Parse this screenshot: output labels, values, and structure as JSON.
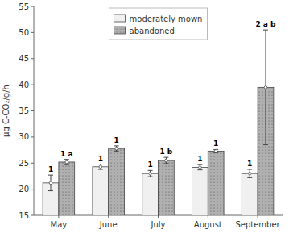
{
  "chart_data": {
    "type": "bar",
    "categories": [
      "May",
      "June",
      "July",
      "August",
      "September"
    ],
    "series": [
      {
        "name": "moderately mown",
        "color": "#f0f0f0",
        "values": [
          21.2,
          24.3,
          23.0,
          24.2,
          23.0
        ],
        "errors": [
          1.5,
          0.5,
          0.6,
          0.5,
          0.8
        ],
        "annotations": [
          "1",
          "1",
          "1",
          "1",
          "1"
        ]
      },
      {
        "name": "abandoned",
        "color": "#b0b0b0",
        "values": [
          25.2,
          27.8,
          25.5,
          27.3,
          39.5
        ],
        "errors": [
          0.5,
          0.5,
          0.6,
          0.3,
          11.0
        ],
        "annotations": [
          "1 a",
          "1",
          "1 b",
          "1",
          "2 a b"
        ]
      }
    ],
    "ylabel": "µg C-CO₂/g/h",
    "ylim": [
      15,
      55
    ],
    "yticks": [
      15,
      20,
      25,
      30,
      35,
      40,
      45,
      50,
      55
    ],
    "grid": false,
    "legend": "upper center"
  }
}
